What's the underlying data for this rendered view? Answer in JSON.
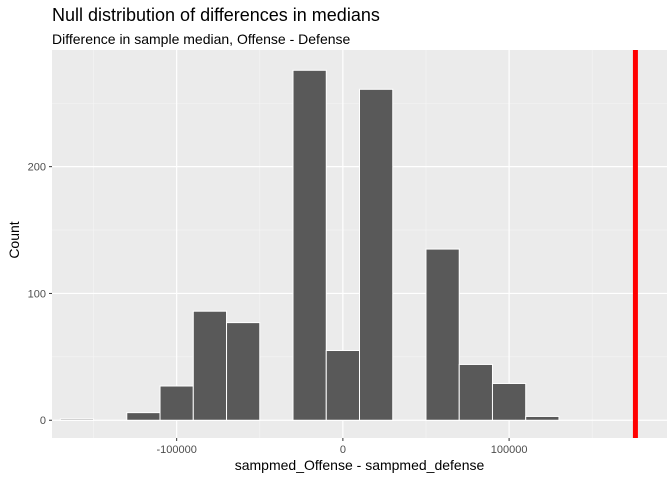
{
  "chart_data": {
    "type": "bar",
    "title": "Null distribution of differences in medians",
    "subtitle": "Difference in sample median, Offense - Defense",
    "xlabel": "sampmed_Offense - sampmed_defense",
    "ylabel": "Count",
    "bin_width": 20000,
    "bins": [
      {
        "x": -160000,
        "count": 1
      },
      {
        "x": -120000,
        "count": 6
      },
      {
        "x": -100000,
        "count": 27
      },
      {
        "x": -80000,
        "count": 86
      },
      {
        "x": -60000,
        "count": 77
      },
      {
        "x": -20000,
        "count": 276
      },
      {
        "x": 0,
        "count": 55
      },
      {
        "x": 20000,
        "count": 261
      },
      {
        "x": 60000,
        "count": 135
      },
      {
        "x": 80000,
        "count": 44
      },
      {
        "x": 100000,
        "count": 29
      },
      {
        "x": 120000,
        "count": 3
      }
    ],
    "observed_value": 176000,
    "observed_color": "#ff0000",
    "bar_color": "#595959",
    "xlim": [
      -175000,
      195000
    ],
    "ylim": [
      -14,
      292
    ],
    "x_ticks": [
      {
        "value": -100000,
        "label": "-100000"
      },
      {
        "value": 0,
        "label": "0"
      },
      {
        "value": 100000,
        "label": "100000"
      }
    ],
    "y_ticks": [
      {
        "value": 0,
        "label": "0"
      },
      {
        "value": 100,
        "label": "100"
      },
      {
        "value": 200,
        "label": "200"
      }
    ],
    "grid": true
  }
}
